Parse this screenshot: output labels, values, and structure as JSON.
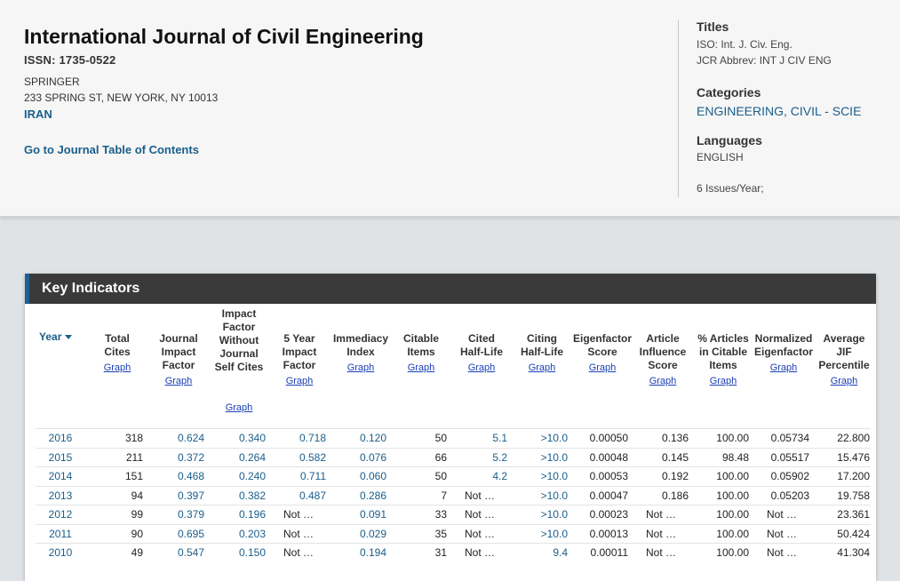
{
  "header": {
    "title": "International Journal of Civil Engineering",
    "issn": "ISSN: 1735-0522",
    "publisher": "SPRINGER",
    "address": "233 SPRING ST, NEW YORK, NY 10013",
    "country": "IRAN",
    "toc_link": "Go to Journal Table of Contents"
  },
  "side": {
    "titles_heading": "Titles",
    "iso": "ISO: Int. J. Civ. Eng.",
    "jcr": "JCR Abbrev: INT J CIV ENG",
    "categories_heading": "Categories",
    "category": "ENGINEERING, CIVIL - SCIE",
    "languages_heading": "Languages",
    "language": "ENGLISH",
    "issues": "6 Issues/Year;"
  },
  "card": {
    "title": "Key Indicators"
  },
  "table": {
    "year_header": "Year",
    "graph_label": "Graph",
    "columns": [
      "Total Cites",
      "Journal Impact Factor",
      "Impact Factor Without Journal Self Cites",
      "5 Year Impact Factor",
      "Immediacy Index",
      "Citable Items",
      "Cited Half-Life",
      "Citing Half-Life",
      "Eigenfactor Score",
      "Article Influence Score",
      "% Articles in Citable Items",
      "Normalized Eigenfactor",
      "Average JIF Percentile"
    ],
    "rows": [
      {
        "year": "2016",
        "cells": [
          "318",
          "0.624",
          "0.340",
          "0.718",
          "0.120",
          "50",
          "5.1",
          ">10.0",
          "0.00050",
          "0.136",
          "100.00",
          "0.05734",
          "22.800"
        ]
      },
      {
        "year": "2015",
        "cells": [
          "211",
          "0.372",
          "0.264",
          "0.582",
          "0.076",
          "66",
          "5.2",
          ">10.0",
          "0.00048",
          "0.145",
          "98.48",
          "0.05517",
          "15.476"
        ]
      },
      {
        "year": "2014",
        "cells": [
          "151",
          "0.468",
          "0.240",
          "0.711",
          "0.060",
          "50",
          "4.2",
          ">10.0",
          "0.00053",
          "0.192",
          "100.00",
          "0.05902",
          "17.200"
        ]
      },
      {
        "year": "2013",
        "cells": [
          "94",
          "0.397",
          "0.382",
          "0.487",
          "0.286",
          "7",
          "Not …",
          ">10.0",
          "0.00047",
          "0.186",
          "100.00",
          "0.05203",
          "19.758"
        ]
      },
      {
        "year": "2012",
        "cells": [
          "99",
          "0.379",
          "0.196",
          "Not …",
          "0.091",
          "33",
          "Not …",
          ">10.0",
          "0.00023",
          "Not …",
          "100.00",
          "Not …",
          "23.361"
        ]
      },
      {
        "year": "2011",
        "cells": [
          "90",
          "0.695",
          "0.203",
          "Not …",
          "0.029",
          "35",
          "Not …",
          ">10.0",
          "0.00013",
          "Not …",
          "100.00",
          "Not …",
          "50.424"
        ]
      },
      {
        "year": "2010",
        "cells": [
          "49",
          "0.547",
          "0.150",
          "Not …",
          "0.194",
          "31",
          "Not …",
          "9.4",
          "0.00011",
          "Not …",
          "100.00",
          "Not …",
          "41.304"
        ]
      }
    ]
  }
}
